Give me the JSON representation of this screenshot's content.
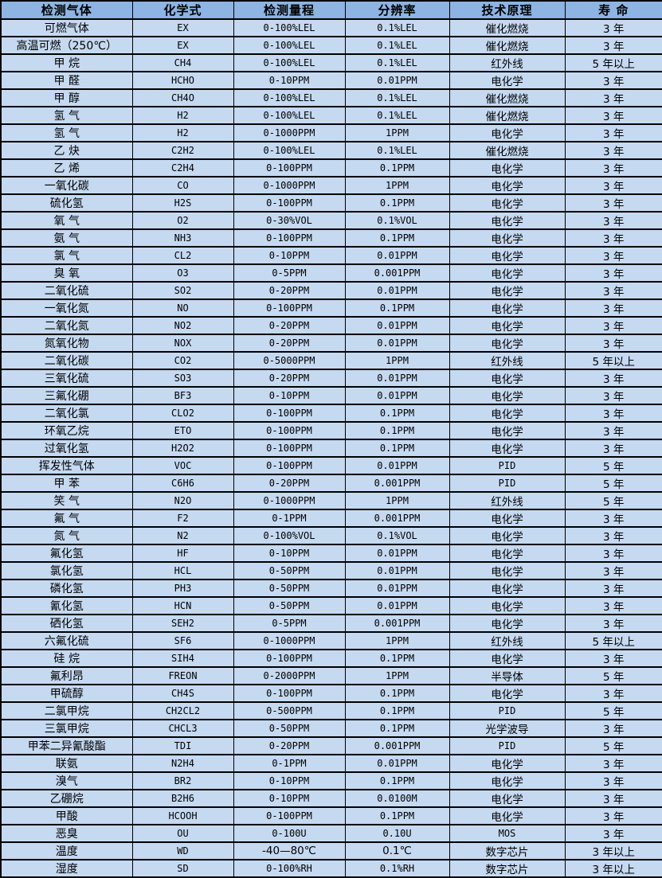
{
  "colors": {
    "header_bg": "#8db4e2",
    "row_bg": "#c5d9f1",
    "border": "#000000",
    "text": "#000000"
  },
  "table": {
    "columns": [
      "检测气体",
      "化学式",
      "检测量程",
      "分辨率",
      "技术原理",
      "寿 命"
    ],
    "rows": [
      [
        "可燃气体",
        "EX",
        "0-100%LEL",
        "0.1%LEL",
        "催化燃烧",
        "3 年"
      ],
      [
        "高温可燃（250℃）",
        "EX",
        "0-100%LEL",
        "0.1%LEL",
        "催化燃烧",
        "3 年"
      ],
      [
        "甲 烷",
        "CH4",
        "0-100%LEL",
        "0.1%LEL",
        "红外线",
        "5 年以上"
      ],
      [
        "甲 醛",
        "HCHO",
        "0-10PPM",
        "0.01PPM",
        "电化学",
        "3 年"
      ],
      [
        "甲 醇",
        "CH4O",
        "0-100%LEL",
        "0.1%LEL",
        "催化燃烧",
        "3 年"
      ],
      [
        "氢 气",
        "H2",
        "0-100%LEL",
        "0.1%LEL",
        "催化燃烧",
        "3 年"
      ],
      [
        "氢 气",
        "H2",
        "0-1000PPM",
        "1PPM",
        "电化学",
        "3 年"
      ],
      [
        "乙 炔",
        "C2H2",
        "0-100%LEL",
        "0.1%LEL",
        "催化燃烧",
        "3 年"
      ],
      [
        "乙 烯",
        "C2H4",
        "0-100PPM",
        "0.1PPM",
        "电化学",
        "3 年"
      ],
      [
        "一氧化碳",
        "CO",
        "0-1000PPM",
        "1PPM",
        "电化学",
        "3 年"
      ],
      [
        "硫化氢",
        "H2S",
        "0-100PPM",
        "0.1PPM",
        "电化学",
        "3 年"
      ],
      [
        "氧 气",
        "O2",
        "0-30%VOL",
        "0.1%VOL",
        "电化学",
        "3 年"
      ],
      [
        "氨 气",
        "NH3",
        "0-100PPM",
        "0.1PPM",
        "电化学",
        "3 年"
      ],
      [
        "氯 气",
        "CL2",
        "0-10PPM",
        "0.01PPM",
        "电化学",
        "3 年"
      ],
      [
        "臭 氧",
        "O3",
        "0-5PPM",
        "0.001PPM",
        "电化学",
        "3 年"
      ],
      [
        "二氧化硫",
        "SO2",
        "0-20PPM",
        "0.01PPM",
        "电化学",
        "3 年"
      ],
      [
        "一氧化氮",
        "NO",
        "0-100PPM",
        "0.1PPM",
        "电化学",
        "3 年"
      ],
      [
        "二氧化氮",
        "NO2",
        "0-20PPM",
        "0.01PPM",
        "电化学",
        "3 年"
      ],
      [
        "氮氧化物",
        "NOX",
        "0-20PPM",
        "0.01PPM",
        "电化学",
        "3 年"
      ],
      [
        "二氧化碳",
        "CO2",
        "0-5000PPM",
        "1PPM",
        "红外线",
        "5 年以上"
      ],
      [
        "三氧化硫",
        "SO3",
        "0-20PPM",
        "0.01PPM",
        "电化学",
        "3 年"
      ],
      [
        "三氟化硼",
        "BF3",
        "0-10PPM",
        "0.01PPM",
        "电化学",
        "3 年"
      ],
      [
        "二氧化氯",
        "CLO2",
        "0-100PPM",
        "0.1PPM",
        "电化学",
        "3 年"
      ],
      [
        "环氧乙烷",
        "ETO",
        "0-100PPM",
        "0.1PPM",
        "电化学",
        "3 年"
      ],
      [
        "过氧化氢",
        "H2O2",
        "0-100PPM",
        "0.1PPM",
        "电化学",
        "3 年"
      ],
      [
        "挥发性气体",
        "VOC",
        "0-100PPM",
        "0.01PPM",
        "PID",
        "5 年"
      ],
      [
        "甲 苯",
        "C6H6",
        "0-20PPM",
        "0.001PPM",
        "PID",
        "5 年"
      ],
      [
        "笑 气",
        "N2O",
        "0-1000PPM",
        "1PPM",
        "红外线",
        "5 年"
      ],
      [
        "氟 气",
        "F2",
        "0-1PPM",
        "0.001PPM",
        "电化学",
        "3 年"
      ],
      [
        "氮 气",
        "N2",
        "0-100%VOL",
        "0.1%VOL",
        "电化学",
        "3 年"
      ],
      [
        "氟化氢",
        "HF",
        "0-10PPM",
        "0.01PPM",
        "电化学",
        "3 年"
      ],
      [
        "氯化氢",
        "HCL",
        "0-50PPM",
        "0.01PPM",
        "电化学",
        "3 年"
      ],
      [
        "磷化氢",
        "PH3",
        "0-50PPM",
        "0.01PPM",
        "电化学",
        "3 年"
      ],
      [
        "氰化氢",
        "HCN",
        "0-50PPM",
        "0.01PPM",
        "电化学",
        "3 年"
      ],
      [
        "硒化氢",
        "SEH2",
        "0-5PPM",
        "0.001PPM",
        "电化学",
        "3 年"
      ],
      [
        "六氟化硫",
        "SF6",
        "0-1000PPM",
        "1PPM",
        "红外线",
        "5 年以上"
      ],
      [
        "硅 烷",
        "SIH4",
        "0-100PPM",
        "0.1PPM",
        "电化学",
        "3 年"
      ],
      [
        "氟利昂",
        "FREON",
        "0-2000PPM",
        "1PPM",
        "半导体",
        "5 年"
      ],
      [
        "甲硫醇",
        "CH4S",
        "0-100PPM",
        "0.1PPM",
        "电化学",
        "3 年"
      ],
      [
        "二氯甲烷",
        "CH2CL2",
        "0-500PPM",
        "0.1PPM",
        "PID",
        "5 年"
      ],
      [
        "三氯甲烷",
        "CHCL3",
        "0-50PPM",
        "0.1PPM",
        "光学波导",
        "3 年"
      ],
      [
        "甲苯二异氰酸酯",
        "TDI",
        "0-20PPM",
        "0.001PPM",
        "PID",
        "5 年"
      ],
      [
        "联氨",
        "N2H4",
        "0-1PPM",
        "0.01PPM",
        "电化学",
        "3 年"
      ],
      [
        "溴气",
        "BR2",
        "0-10PPM",
        "0.1PPM",
        "电化学",
        "3 年"
      ],
      [
        "乙硼烷",
        "B2H6",
        "0-10PPM",
        "0.0100M",
        "电化学",
        "3 年"
      ],
      [
        "甲酸",
        "HCOOH",
        "0-100PPM",
        "0.1PPM",
        "电化学",
        "3 年"
      ],
      [
        "恶臭",
        "OU",
        "0-100U",
        "0.10U",
        "MOS",
        "3 年"
      ],
      [
        "温度",
        "WD",
        "-40—80℃",
        "0.1℃",
        "数字芯片",
        "3 年以上"
      ],
      [
        "湿度",
        "SD",
        "0-100%RH",
        "0.1%RH",
        "数字芯片",
        "3 年以上"
      ]
    ]
  }
}
